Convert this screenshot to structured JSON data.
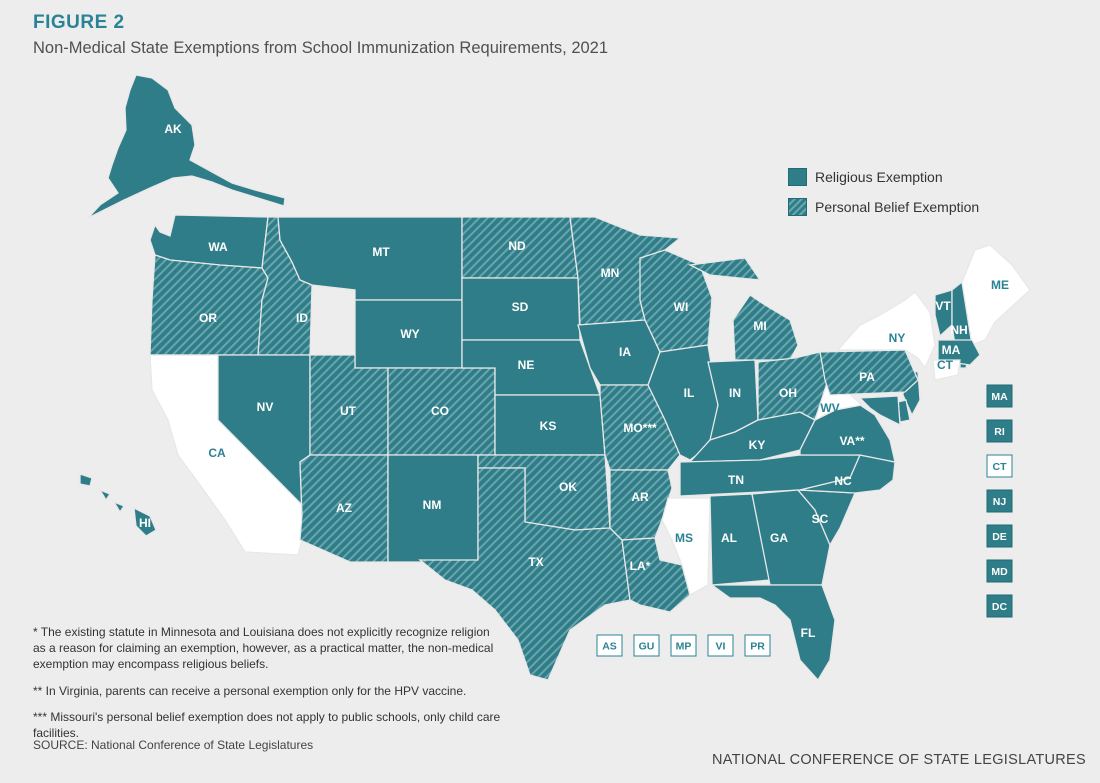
{
  "figure_label": "FIGURE 2",
  "title": "Non-Medical State Exemptions from School Immunization Requirements, 2021",
  "legend": {
    "religious": "Religious Exemption",
    "personal_belief": "Personal Belief Exemption"
  },
  "colors": {
    "religious": "#2e7d88",
    "stripe_light": "#6aa5ad",
    "none": "#ffffff",
    "border": "#e8e8e8",
    "label_dark": "#ffffff",
    "label_light": "#2a8394",
    "background": "#ededed"
  },
  "states": [
    {
      "abbr": "AK",
      "status": "religious"
    },
    {
      "abbr": "HI",
      "status": "religious"
    },
    {
      "abbr": "WA",
      "status": "religious"
    },
    {
      "abbr": "OR",
      "status": "personal_belief"
    },
    {
      "abbr": "CA",
      "status": "none"
    },
    {
      "abbr": "ID",
      "status": "personal_belief"
    },
    {
      "abbr": "NV",
      "status": "religious"
    },
    {
      "abbr": "MT",
      "status": "religious"
    },
    {
      "abbr": "WY",
      "status": "religious"
    },
    {
      "abbr": "UT",
      "status": "personal_belief"
    },
    {
      "abbr": "CO",
      "status": "personal_belief"
    },
    {
      "abbr": "AZ",
      "status": "personal_belief"
    },
    {
      "abbr": "NM",
      "status": "religious"
    },
    {
      "abbr": "ND",
      "status": "personal_belief"
    },
    {
      "abbr": "SD",
      "status": "religious"
    },
    {
      "abbr": "NE",
      "status": "religious"
    },
    {
      "abbr": "KS",
      "status": "religious"
    },
    {
      "abbr": "OK",
      "status": "personal_belief"
    },
    {
      "abbr": "TX",
      "status": "personal_belief"
    },
    {
      "abbr": "MN",
      "status": "personal_belief"
    },
    {
      "abbr": "IA",
      "status": "religious"
    },
    {
      "abbr": "MO***",
      "status": "personal_belief"
    },
    {
      "abbr": "AR",
      "status": "personal_belief"
    },
    {
      "abbr": "LA*",
      "status": "personal_belief"
    },
    {
      "abbr": "WI",
      "status": "personal_belief"
    },
    {
      "abbr": "IL",
      "status": "religious"
    },
    {
      "abbr": "MS",
      "status": "none"
    },
    {
      "abbr": "MI",
      "status": "personal_belief"
    },
    {
      "abbr": "IN",
      "status": "religious"
    },
    {
      "abbr": "KY",
      "status": "religious"
    },
    {
      "abbr": "TN",
      "status": "religious"
    },
    {
      "abbr": "AL",
      "status": "religious"
    },
    {
      "abbr": "OH",
      "status": "personal_belief"
    },
    {
      "abbr": "GA",
      "status": "religious"
    },
    {
      "abbr": "FL",
      "status": "religious"
    },
    {
      "abbr": "SC",
      "status": "religious"
    },
    {
      "abbr": "NC",
      "status": "religious"
    },
    {
      "abbr": "VA**",
      "status": "religious"
    },
    {
      "abbr": "WV",
      "status": "none"
    },
    {
      "abbr": "PA",
      "status": "personal_belief"
    },
    {
      "abbr": "NY",
      "status": "none"
    },
    {
      "abbr": "VT",
      "status": "religious"
    },
    {
      "abbr": "NH",
      "status": "religious"
    },
    {
      "abbr": "ME",
      "status": "none"
    },
    {
      "abbr": "MA",
      "status": "religious"
    },
    {
      "abbr": "CT",
      "status": "none"
    }
  ],
  "small_states": [
    {
      "abbr": "MA",
      "status": "religious"
    },
    {
      "abbr": "RI",
      "status": "religious"
    },
    {
      "abbr": "CT",
      "status": "none"
    },
    {
      "abbr": "NJ",
      "status": "religious"
    },
    {
      "abbr": "DE",
      "status": "religious"
    },
    {
      "abbr": "MD",
      "status": "religious"
    },
    {
      "abbr": "DC",
      "status": "religious"
    }
  ],
  "territories": [
    {
      "abbr": "AS",
      "status": "none"
    },
    {
      "abbr": "GU",
      "status": "none"
    },
    {
      "abbr": "MP",
      "status": "none"
    },
    {
      "abbr": "VI",
      "status": "none"
    },
    {
      "abbr": "PR",
      "status": "none"
    }
  ],
  "footnotes": [
    "* The existing statute in Minnesota and Louisiana does not explicitly recognize religion as a reason for claiming an exemption, however, as a practical matter, the non-medical exemption may encompass religious beliefs.",
    "** In Virginia, parents can receive a personal exemption only for the HPV vaccine.",
    "*** Missouri's personal belief exemption does not apply to public schools, only child care facilities."
  ],
  "source": "SOURCE: National Conference of State Legislatures",
  "organization": "NATIONAL CONFERENCE OF STATE LEGISLATURES"
}
